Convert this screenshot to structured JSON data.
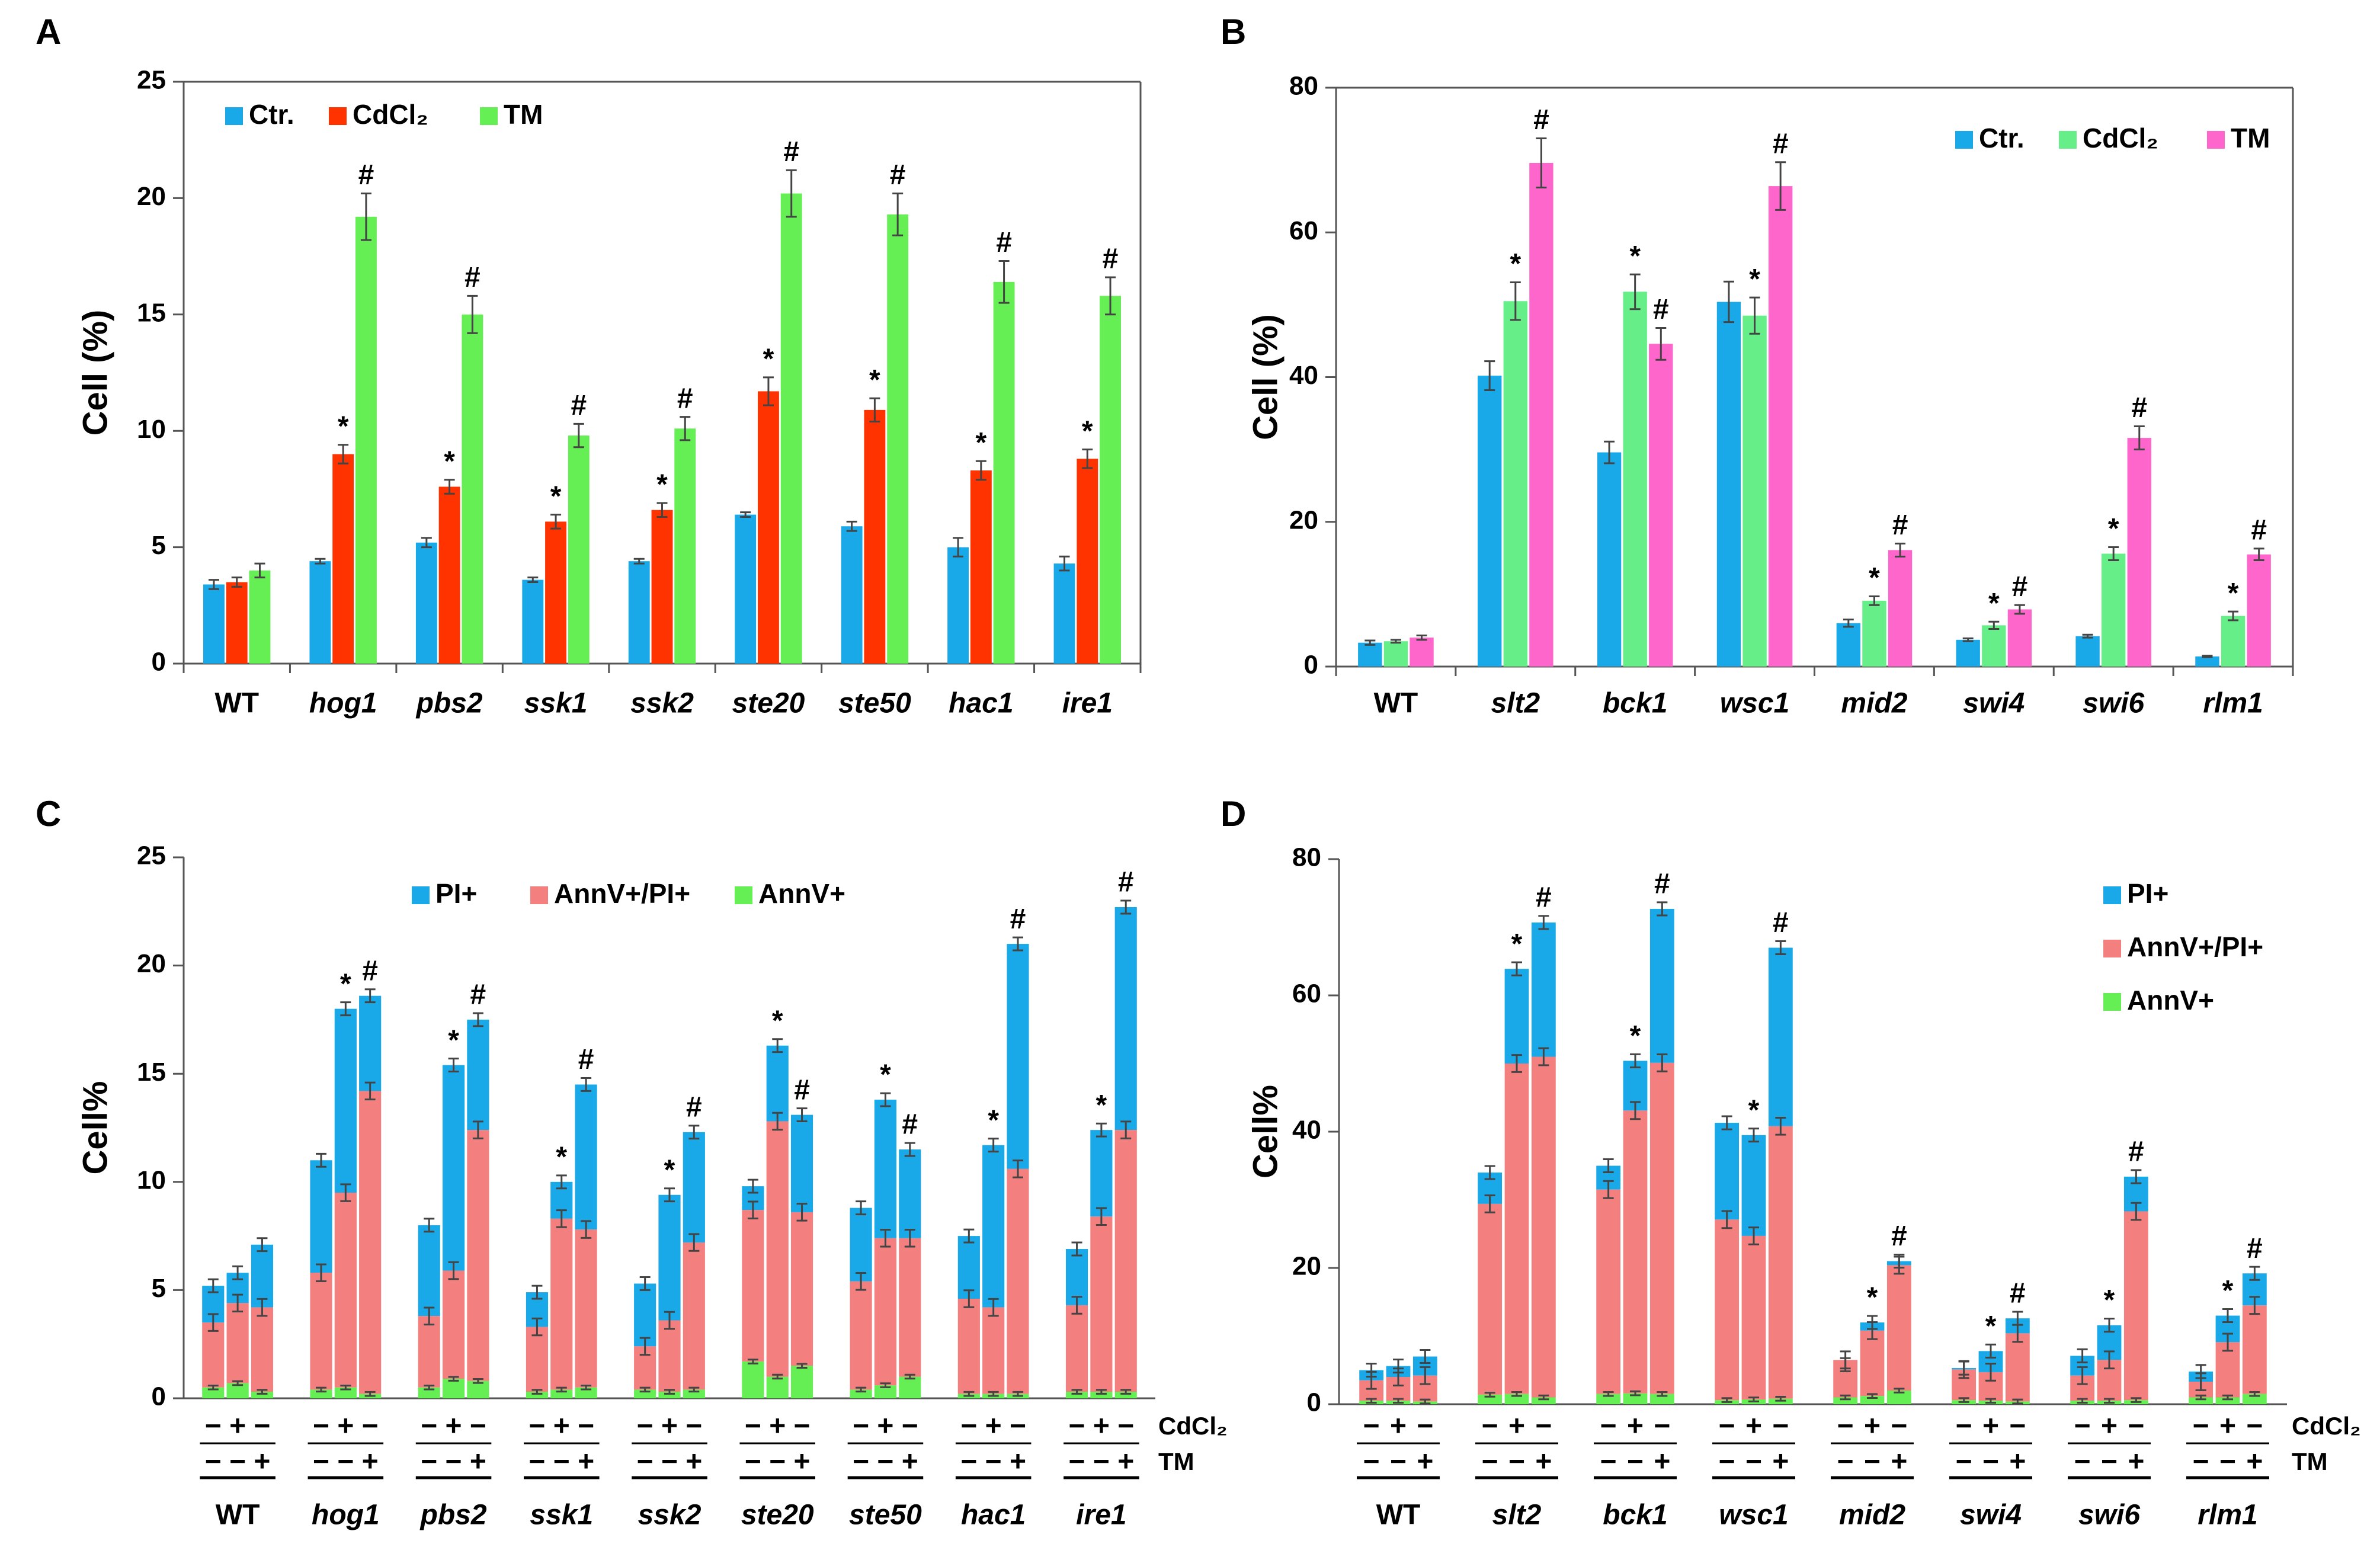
{
  "chart_data": [
    {
      "panel": "A",
      "type": "bar",
      "ylabel": "Cell (%)",
      "ylim": [
        0,
        25
      ],
      "yticks": [
        0,
        5,
        10,
        15,
        20,
        25
      ],
      "legend_position": "top-left",
      "categories": [
        "WT",
        "hog1",
        "pbs2",
        "ssk1",
        "ssk2",
        "ste20",
        "ste50",
        "hac1",
        "ire1"
      ],
      "italic_from_index": 1,
      "series": [
        {
          "name": "Ctr.",
          "color": "#1aa9e8",
          "values": [
            3.4,
            4.4,
            5.2,
            3.6,
            4.4,
            6.4,
            5.9,
            5.0,
            4.3
          ],
          "errors": [
            0.2,
            0.1,
            0.2,
            0.1,
            0.1,
            0.1,
            0.2,
            0.4,
            0.3
          ],
          "marks": [
            "",
            "",
            "",
            "",
            "",
            "",
            "",
            "",
            ""
          ]
        },
        {
          "name": "CdCl₂",
          "color": "#ff3300",
          "values": [
            3.5,
            9.0,
            7.6,
            6.1,
            6.6,
            11.7,
            10.9,
            8.3,
            8.8
          ],
          "errors": [
            0.2,
            0.4,
            0.3,
            0.3,
            0.3,
            0.6,
            0.5,
            0.4,
            0.4
          ],
          "marks": [
            "",
            "*",
            "*",
            "*",
            "*",
            "*",
            "*",
            "*",
            "*"
          ]
        },
        {
          "name": "TM",
          "color": "#66ee55",
          "values": [
            4.0,
            19.2,
            15.0,
            9.8,
            10.1,
            20.2,
            19.3,
            16.4,
            15.8
          ],
          "errors": [
            0.3,
            1.0,
            0.8,
            0.5,
            0.5,
            1.0,
            0.9,
            0.9,
            0.8
          ],
          "marks": [
            "",
            "#",
            "#",
            "#",
            "#",
            "#",
            "#",
            "#",
            "#"
          ]
        }
      ]
    },
    {
      "panel": "B",
      "type": "bar",
      "ylabel": "Cell (%)",
      "ylim": [
        0,
        80
      ],
      "yticks": [
        0,
        20,
        40,
        60,
        80
      ],
      "legend_position": "top-right",
      "categories": [
        "WT",
        "slt2",
        "bck1",
        "wsc1",
        "mid2",
        "swi4",
        "swi6",
        "rlm1"
      ],
      "italic_from_index": 1,
      "series": [
        {
          "name": "Ctr.",
          "color": "#1aa9e8",
          "values": [
            3.3,
            40.2,
            29.6,
            50.4,
            6.0,
            3.7,
            4.2,
            1.4
          ],
          "errors": [
            0.3,
            2.0,
            1.5,
            2.8,
            0.5,
            0.2,
            0.2,
            0.1
          ],
          "marks": [
            "",
            "",
            "",
            "",
            "",
            "",
            "",
            ""
          ]
        },
        {
          "name": "CdCl₂",
          "color": "#66ee88",
          "values": [
            3.5,
            50.5,
            51.8,
            48.5,
            9.1,
            5.7,
            15.6,
            7.0
          ],
          "errors": [
            0.2,
            2.6,
            2.4,
            2.5,
            0.6,
            0.5,
            0.9,
            0.6
          ],
          "marks": [
            "",
            "*",
            "*",
            "*",
            "*",
            "*",
            "*",
            "*"
          ]
        },
        {
          "name": "TM",
          "color": "#ff66cc",
          "values": [
            4.0,
            69.6,
            44.6,
            66.4,
            16.1,
            7.9,
            31.6,
            15.5
          ],
          "errors": [
            0.3,
            3.4,
            2.2,
            3.3,
            0.9,
            0.6,
            1.6,
            0.8
          ],
          "marks": [
            "",
            "#",
            "#",
            "#",
            "#",
            "#",
            "#",
            "#"
          ]
        }
      ]
    },
    {
      "panel": "C",
      "type": "stacked-bar",
      "ylabel": "Cell%",
      "ylim": [
        0,
        25
      ],
      "yticks": [
        0,
        5,
        10,
        15,
        20,
        25
      ],
      "legend_position": "top-center",
      "categories": [
        "WT",
        "hog1",
        "pbs2",
        "ssk1",
        "ssk2",
        "ste20",
        "ste50",
        "hac1",
        "ire1"
      ],
      "italic_from_index": 1,
      "conditions": {
        "row1_label": "CdCl₂",
        "row1": [
          "−",
          "+",
          "−"
        ],
        "row2_label": "TM",
        "row2": [
          "−",
          "−",
          "+"
        ]
      },
      "legend": [
        {
          "name": "PI+",
          "color": "#1aa9e8"
        },
        {
          "name": "AnnV+/PI+",
          "color": "#f47f7f"
        },
        {
          "name": "AnnV+",
          "color": "#66ee55"
        }
      ],
      "groups": [
        {
          "bars": [
            {
              "annv": 0.5,
              "both": 3.0,
              "total": 5.2,
              "marks": ""
            },
            {
              "annv": 0.7,
              "both": 3.7,
              "total": 5.8,
              "marks": ""
            },
            {
              "annv": 0.3,
              "both": 3.9,
              "total": 7.1,
              "marks": ""
            }
          ]
        },
        {
          "bars": [
            {
              "annv": 0.4,
              "both": 5.4,
              "total": 11.0,
              "marks": ""
            },
            {
              "annv": 0.5,
              "both": 9.0,
              "total": 18.0,
              "marks": "*"
            },
            {
              "annv": 0.2,
              "both": 14.0,
              "total": 18.6,
              "marks": "#"
            }
          ]
        },
        {
          "bars": [
            {
              "annv": 0.5,
              "both": 3.3,
              "total": 8.0,
              "marks": ""
            },
            {
              "annv": 0.9,
              "both": 5.0,
              "total": 15.4,
              "marks": "*"
            },
            {
              "annv": 0.8,
              "both": 11.6,
              "total": 17.5,
              "marks": "#"
            }
          ]
        },
        {
          "bars": [
            {
              "annv": 0.3,
              "both": 3.0,
              "total": 4.9,
              "marks": ""
            },
            {
              "annv": 0.4,
              "both": 7.9,
              "total": 10.0,
              "marks": "*"
            },
            {
              "annv": 0.5,
              "both": 7.3,
              "total": 14.5,
              "marks": "#"
            }
          ]
        },
        {
          "bars": [
            {
              "annv": 0.4,
              "both": 2.0,
              "total": 5.3,
              "marks": ""
            },
            {
              "annv": 0.3,
              "both": 3.3,
              "total": 9.4,
              "marks": "*"
            },
            {
              "annv": 0.4,
              "both": 6.8,
              "total": 12.3,
              "marks": "#"
            }
          ]
        },
        {
          "bars": [
            {
              "annv": 1.7,
              "both": 7.0,
              "total": 9.8,
              "marks": ""
            },
            {
              "annv": 1.0,
              "both": 11.8,
              "total": 16.3,
              "marks": "*"
            },
            {
              "annv": 1.5,
              "both": 7.1,
              "total": 13.1,
              "marks": "#"
            }
          ]
        },
        {
          "bars": [
            {
              "annv": 0.4,
              "both": 5.0,
              "total": 8.8,
              "marks": ""
            },
            {
              "annv": 0.6,
              "both": 6.8,
              "total": 13.8,
              "marks": "*"
            },
            {
              "annv": 1.0,
              "both": 6.4,
              "total": 11.5,
              "marks": "#"
            }
          ]
        },
        {
          "bars": [
            {
              "annv": 0.2,
              "both": 4.4,
              "total": 7.5,
              "marks": ""
            },
            {
              "annv": 0.2,
              "both": 4.0,
              "total": 11.7,
              "marks": "*"
            },
            {
              "annv": 0.2,
              "both": 10.4,
              "total": 21.0,
              "marks": "#"
            }
          ]
        },
        {
          "bars": [
            {
              "annv": 0.3,
              "both": 4.0,
              "total": 6.9,
              "marks": ""
            },
            {
              "annv": 0.3,
              "both": 8.1,
              "total": 12.4,
              "marks": "*"
            },
            {
              "annv": 0.3,
              "both": 12.1,
              "total": 22.7,
              "marks": "#"
            }
          ]
        }
      ]
    },
    {
      "panel": "D",
      "type": "stacked-bar",
      "ylabel": "Cell%",
      "ylim": [
        0,
        80
      ],
      "yticks": [
        0,
        20,
        40,
        60,
        80
      ],
      "legend_position": "top-right",
      "categories": [
        "WT",
        "slt2",
        "bck1",
        "wsc1",
        "mid2",
        "swi4",
        "swi6",
        "rlm1"
      ],
      "italic_from_index": 1,
      "conditions": {
        "row1_label": "CdCl₂",
        "row1": [
          "−",
          "+",
          "−"
        ],
        "row2_label": "TM",
        "row2": [
          "−",
          "−",
          "+"
        ]
      },
      "legend": [
        {
          "name": "PI+",
          "color": "#1aa9e8"
        },
        {
          "name": "AnnV+/PI+",
          "color": "#f47f7f"
        },
        {
          "name": "AnnV+",
          "color": "#66ee55"
        }
      ],
      "groups": [
        {
          "bars": [
            {
              "annv": 0.5,
              "both": 3.0,
              "total": 5.0,
              "marks": ""
            },
            {
              "annv": 0.5,
              "both": 3.5,
              "total": 5.6,
              "marks": ""
            },
            {
              "annv": 0.4,
              "both": 3.8,
              "total": 7.0,
              "marks": ""
            }
          ]
        },
        {
          "bars": [
            {
              "annv": 1.4,
              "both": 28.0,
              "total": 34.0,
              "marks": ""
            },
            {
              "annv": 1.5,
              "both": 48.5,
              "total": 63.9,
              "marks": "*"
            },
            {
              "annv": 1.0,
              "both": 50.0,
              "total": 70.7,
              "marks": "#"
            }
          ]
        },
        {
          "bars": [
            {
              "annv": 1.5,
              "both": 30.0,
              "total": 35.0,
              "marks": ""
            },
            {
              "annv": 1.6,
              "both": 41.5,
              "total": 50.4,
              "marks": "*"
            },
            {
              "annv": 1.5,
              "both": 48.6,
              "total": 72.7,
              "marks": "#"
            }
          ]
        },
        {
          "bars": [
            {
              "annv": 0.6,
              "both": 26.5,
              "total": 41.3,
              "marks": ""
            },
            {
              "annv": 0.7,
              "both": 24.0,
              "total": 39.5,
              "marks": "*"
            },
            {
              "annv": 0.8,
              "both": 40.0,
              "total": 67.0,
              "marks": "#"
            }
          ]
        },
        {
          "bars": [
            {
              "annv": 1.0,
              "both": 5.5,
              "total": 5.8,
              "marks": ""
            },
            {
              "annv": 1.2,
              "both": 9.6,
              "total": 12.0,
              "marks": "*"
            },
            {
              "annv": 2.0,
              "both": 18.4,
              "total": 21.0,
              "marks": "#"
            }
          ]
        },
        {
          "bars": [
            {
              "annv": 0.6,
              "both": 4.5,
              "total": 5.3,
              "marks": ""
            },
            {
              "annv": 0.5,
              "both": 4.2,
              "total": 7.8,
              "marks": "*"
            },
            {
              "annv": 0.4,
              "both": 10.0,
              "total": 12.6,
              "marks": "#"
            }
          ]
        },
        {
          "bars": [
            {
              "annv": 0.5,
              "both": 3.7,
              "total": 7.1,
              "marks": ""
            },
            {
              "annv": 0.5,
              "both": 6.0,
              "total": 11.6,
              "marks": "*"
            },
            {
              "annv": 0.6,
              "both": 27.7,
              "total": 33.4,
              "marks": "#"
            }
          ]
        },
        {
          "bars": [
            {
              "annv": 1.0,
              "both": 2.3,
              "total": 4.8,
              "marks": ""
            },
            {
              "annv": 1.0,
              "both": 8.1,
              "total": 13.0,
              "marks": "*"
            },
            {
              "annv": 1.5,
              "both": 13.0,
              "total": 19.2,
              "marks": "#"
            }
          ]
        }
      ]
    }
  ]
}
